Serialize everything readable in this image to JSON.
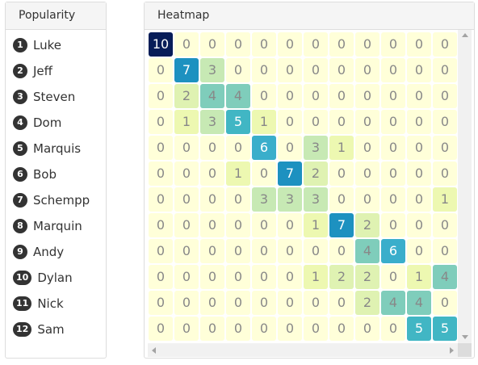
{
  "popularity": {
    "title": "Popularity",
    "items": [
      {
        "rank": "1",
        "name": "Luke"
      },
      {
        "rank": "2",
        "name": "Jeff"
      },
      {
        "rank": "3",
        "name": "Steven"
      },
      {
        "rank": "4",
        "name": "Dom"
      },
      {
        "rank": "5",
        "name": "Marquis"
      },
      {
        "rank": "6",
        "name": "Bob"
      },
      {
        "rank": "7",
        "name": "Schempp"
      },
      {
        "rank": "8",
        "name": "Marquin"
      },
      {
        "rank": "9",
        "name": "Andy"
      },
      {
        "rank": "10",
        "name": "Dylan"
      },
      {
        "rank": "11",
        "name": "Nick"
      },
      {
        "rank": "12",
        "name": "Sam"
      }
    ]
  },
  "heatmap": {
    "title": "Heatmap",
    "matrix": [
      [
        10,
        0,
        0,
        0,
        0,
        0,
        0,
        0,
        0,
        0,
        0,
        0
      ],
      [
        0,
        7,
        3,
        0,
        0,
        0,
        0,
        0,
        0,
        0,
        0,
        0
      ],
      [
        0,
        2,
        4,
        4,
        0,
        0,
        0,
        0,
        0,
        0,
        0,
        0
      ],
      [
        0,
        1,
        3,
        5,
        1,
        0,
        0,
        0,
        0,
        0,
        0,
        0
      ],
      [
        0,
        0,
        0,
        0,
        6,
        0,
        3,
        1,
        0,
        0,
        0,
        0
      ],
      [
        0,
        0,
        0,
        1,
        0,
        7,
        2,
        0,
        0,
        0,
        0,
        0
      ],
      [
        0,
        0,
        0,
        0,
        3,
        3,
        3,
        0,
        0,
        0,
        0,
        1
      ],
      [
        0,
        0,
        0,
        0,
        0,
        0,
        1,
        7,
        2,
        0,
        0,
        0
      ],
      [
        0,
        0,
        0,
        0,
        0,
        0,
        0,
        0,
        4,
        6,
        0,
        0
      ],
      [
        0,
        0,
        0,
        0,
        0,
        0,
        1,
        2,
        2,
        0,
        1,
        4
      ],
      [
        0,
        0,
        0,
        0,
        0,
        0,
        0,
        0,
        2,
        4,
        4,
        0
      ],
      [
        0,
        0,
        0,
        0,
        0,
        0,
        0,
        0,
        0,
        0,
        5,
        5
      ]
    ],
    "colors": {
      "0": "#ffffd9",
      "1": "#edf8b1",
      "2": "#dff2b2",
      "3": "#c7e9b4",
      "4": "#7fcdbb",
      "5": "#41b6c4",
      "6": "#3aaecb",
      "7": "#1d91c0",
      "10": "#081d58"
    },
    "text_colors": {
      "dark": "#888888",
      "light": "#ffffff"
    }
  },
  "icons": {
    "scroll_up": "arrow-up-icon",
    "scroll_down": "arrow-down-icon",
    "scroll_left": "arrow-left-icon",
    "scroll_right": "arrow-right-icon"
  }
}
